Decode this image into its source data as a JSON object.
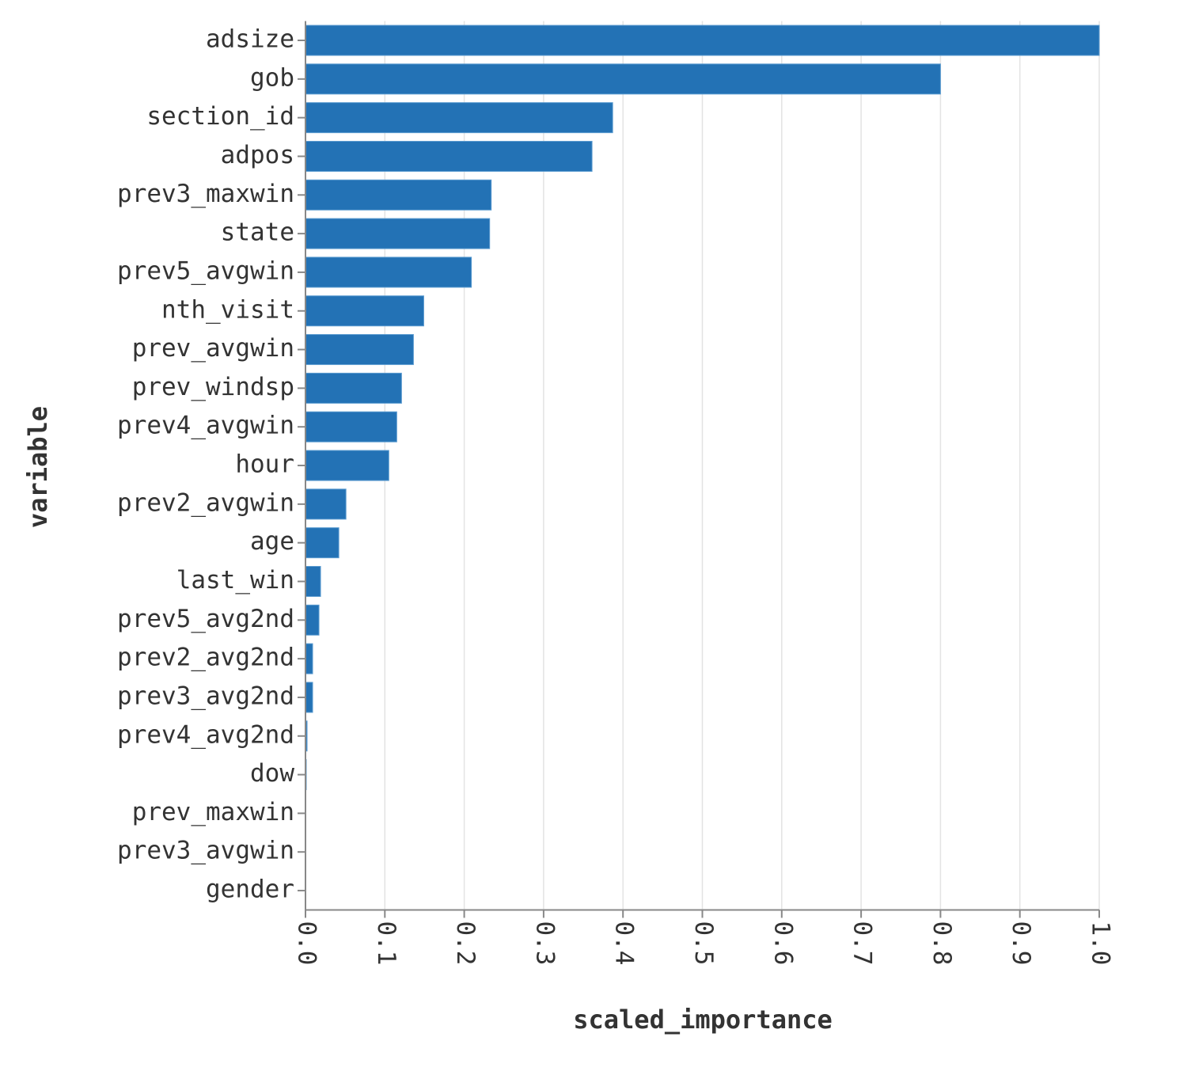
{
  "chart_data": {
    "type": "bar",
    "orientation": "horizontal",
    "x_label": "scaled_importance",
    "y_label": "variable",
    "categories": [
      "adsize",
      "gob",
      "section_id",
      "adpos",
      "prev3_maxwin",
      "state",
      "prev5_avgwin",
      "nth_visit",
      "prev_avgwin",
      "prev_windsp",
      "prev4_avgwin",
      "hour",
      "prev2_avgwin",
      "age",
      "last_win",
      "prev5_avg2nd",
      "prev2_avg2nd",
      "prev3_avg2nd",
      "prev4_avg2nd",
      "dow",
      "prev_maxwin",
      "prev3_avgwin",
      "gender"
    ],
    "values": [
      1.0,
      0.8,
      0.387,
      0.361,
      0.234,
      0.232,
      0.209,
      0.149,
      0.136,
      0.121,
      0.115,
      0.105,
      0.051,
      0.042,
      0.019,
      0.017,
      0.009,
      0.009,
      0.002,
      0.001,
      0.0005,
      0.0003,
      0
    ],
    "color": "#2372b5",
    "xlim": [
      0,
      1
    ],
    "xticks": [
      {
        "value": 0,
        "label": "0.0"
      },
      0.1,
      0.2,
      0.3,
      0.4,
      0.5,
      0.6,
      0.7,
      0.8,
      0.9,
      {
        "value": 1,
        "label": "1.0"
      }
    ],
    "grid": true
  }
}
